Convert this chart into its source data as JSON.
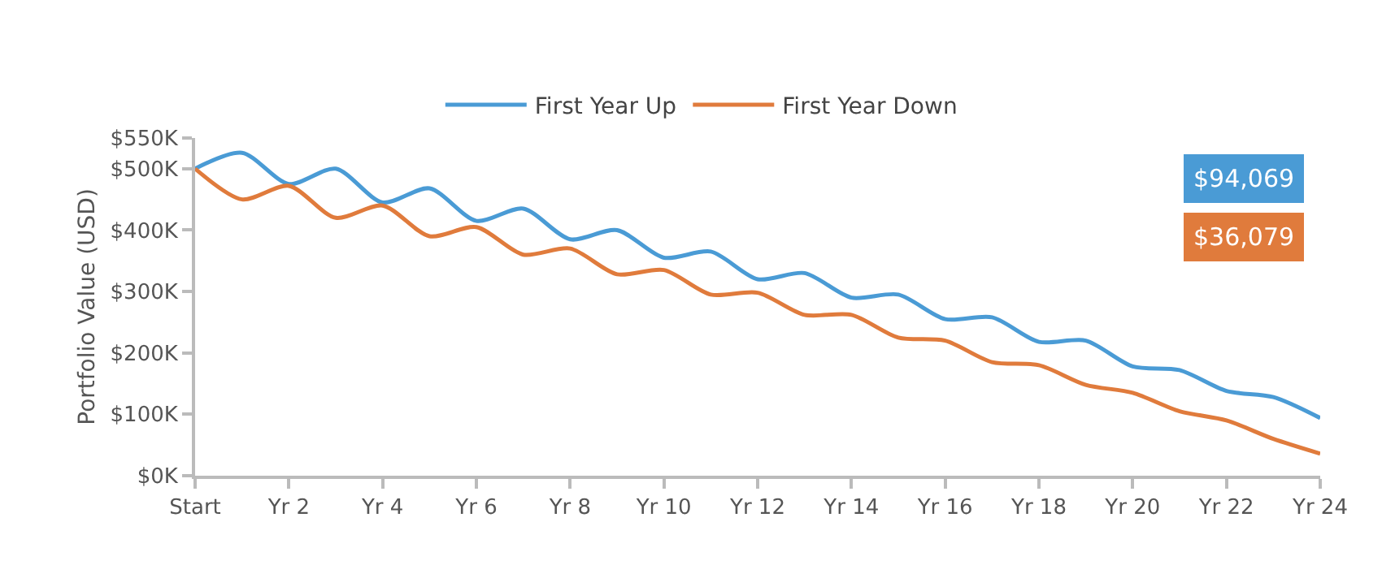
{
  "chart_data": {
    "type": "line",
    "ylabel": "Portfolio Value (USD)",
    "categories": [
      "Start",
      null,
      "Yr 2",
      null,
      "Yr 4",
      null,
      "Yr 6",
      null,
      "Yr 8",
      null,
      "Yr 10",
      null,
      "Yr 12",
      null,
      "Yr 14",
      null,
      "Yr 16",
      null,
      "Yr 18",
      null,
      "Yr 20",
      null,
      "Yr 22",
      null,
      "Yr 24"
    ],
    "series": [
      {
        "name": "First Year Up",
        "color": "#4a9bd5",
        "values": [
          500,
          526,
          475,
          500,
          445,
          468,
          415,
          435,
          385,
          400,
          355,
          365,
          320,
          330,
          290,
          295,
          255,
          258,
          218,
          220,
          178,
          172,
          138,
          128,
          94
        ]
      },
      {
        "name": "First Year Down",
        "color": "#e07b3c",
        "values": [
          500,
          450,
          472,
          420,
          440,
          390,
          405,
          360,
          370,
          328,
          335,
          295,
          298,
          262,
          262,
          225,
          220,
          185,
          180,
          148,
          135,
          105,
          90,
          60,
          36
        ]
      }
    ],
    "ylim": [
      0,
      550
    ],
    "yticks": [
      {
        "value": 0,
        "label": "$0K"
      },
      {
        "value": 100,
        "label": "$100K"
      },
      {
        "value": 200,
        "label": "$200K"
      },
      {
        "value": 300,
        "label": "$300K"
      },
      {
        "value": 400,
        "label": "$400K"
      },
      {
        "value": 500,
        "label": "$500K"
      },
      {
        "value": 550,
        "label": "$550K"
      }
    ],
    "annotations": [
      "$94,069",
      "$36,079"
    ],
    "legend": "top",
    "grid": false,
    "marker": "none",
    "line_style": "solid"
  }
}
